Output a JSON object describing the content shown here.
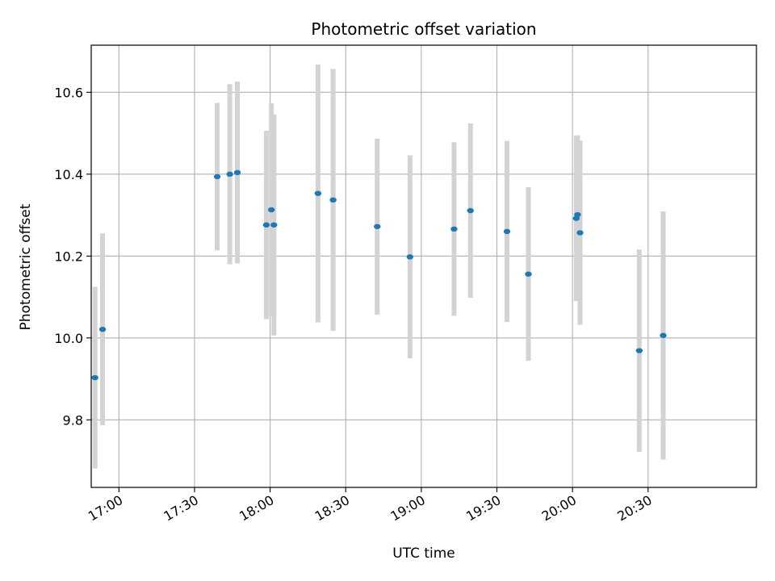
{
  "chart_data": {
    "type": "scatter",
    "title": "Photometric offset variation",
    "xlabel": "UTC time",
    "ylabel": "Photometric offset",
    "x_axis_kind": "time",
    "xlim": [
      "16:49",
      "21:13"
    ],
    "ylim": [
      9.635,
      10.715
    ],
    "grid": true,
    "x_ticks": [
      "17:00",
      "17:30",
      "18:00",
      "18:30",
      "19:00",
      "19:30",
      "20:00",
      "20:30"
    ],
    "y_ticks": [
      9.8,
      10.0,
      10.2,
      10.4,
      10.6
    ],
    "y_tick_labels": [
      "9.8",
      "10.0",
      "10.2",
      "10.4",
      "10.6"
    ],
    "colors": {
      "point": "#1f77b4",
      "errorbar": "#d3d3d3",
      "grid": "#b0b0b0"
    },
    "points": [
      {
        "x": "16:50:30",
        "y": 9.903,
        "err": 0.222
      },
      {
        "x": "16:53:30",
        "y": 10.021,
        "err": 0.234
      },
      {
        "x": "17:39:00",
        "y": 10.394,
        "err": 0.18
      },
      {
        "x": "17:44:00",
        "y": 10.4,
        "err": 0.22
      },
      {
        "x": "17:47:00",
        "y": 10.404,
        "err": 0.222
      },
      {
        "x": "17:58:30",
        "y": 10.276,
        "err": 0.23
      },
      {
        "x": "18:00:30",
        "y": 10.313,
        "err": 0.26
      },
      {
        "x": "18:01:30",
        "y": 10.276,
        "err": 0.27
      },
      {
        "x": "18:19:00",
        "y": 10.353,
        "err": 0.315
      },
      {
        "x": "18:25:00",
        "y": 10.337,
        "err": 0.32
      },
      {
        "x": "18:42:30",
        "y": 10.272,
        "err": 0.215
      },
      {
        "x": "18:55:30",
        "y": 10.198,
        "err": 0.248
      },
      {
        "x": "19:13:00",
        "y": 10.266,
        "err": 0.212
      },
      {
        "x": "19:19:30",
        "y": 10.311,
        "err": 0.213
      },
      {
        "x": "19:34:00",
        "y": 10.26,
        "err": 0.221
      },
      {
        "x": "19:42:30",
        "y": 10.156,
        "err": 0.212
      },
      {
        "x": "20:01:30",
        "y": 10.292,
        "err": 0.202
      },
      {
        "x": "20:02:00",
        "y": 10.301,
        "err": 0.194
      },
      {
        "x": "20:03:00",
        "y": 10.257,
        "err": 0.225
      },
      {
        "x": "20:26:30",
        "y": 9.969,
        "err": 0.247
      },
      {
        "x": "20:36:00",
        "y": 10.006,
        "err": 0.303
      }
    ]
  }
}
